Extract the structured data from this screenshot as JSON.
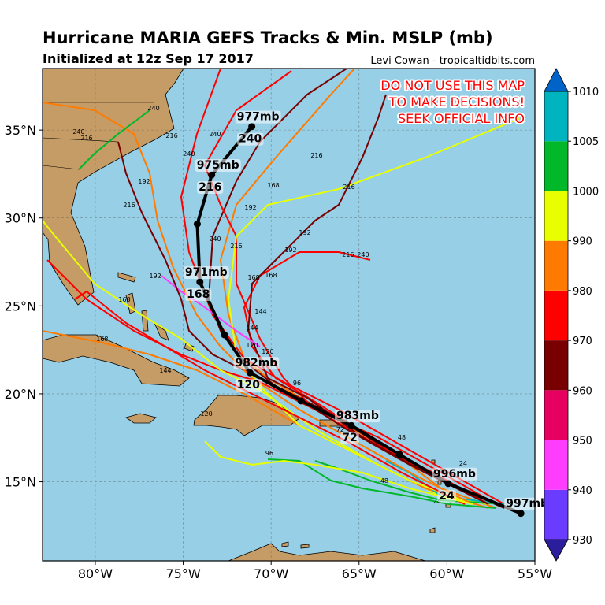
{
  "title": "Hurricane MARIA GEFS Tracks & Min. MSLP (mb)",
  "subtitle": "Initialized at 12z Sep 17 2017",
  "credit": "Levi Cowan - tropicaltidbits.com",
  "warning": [
    "DO NOT USE THIS MAP",
    "TO MAKE DECISIONS!",
    "SEEK OFFICIAL INFO"
  ],
  "lonlim": [
    -83,
    -55
  ],
  "latlim": [
    10.5,
    38.5
  ],
  "lon_ticks": [
    {
      "value": -80,
      "label": "80°W"
    },
    {
      "value": -75,
      "label": "75°W"
    },
    {
      "value": -70,
      "label": "70°W"
    },
    {
      "value": -65,
      "label": "65°W"
    },
    {
      "value": -60,
      "label": "60°W"
    },
    {
      "value": -55,
      "label": "55°W"
    }
  ],
  "lat_ticks": [
    {
      "value": 15,
      "label": "15°N"
    },
    {
      "value": 20,
      "label": "20°N"
    },
    {
      "value": 25,
      "label": "25°N"
    },
    {
      "value": 30,
      "label": "30°N"
    },
    {
      "value": 35,
      "label": "35°N"
    }
  ],
  "colorbar": {
    "ticks": [
      930,
      940,
      950,
      960,
      970,
      980,
      990,
      1000,
      1005,
      1010
    ],
    "colors": [
      "#2a1e9c",
      "#6a3cff",
      "#ff3dff",
      "#e60060",
      "#780000",
      "#ff0000",
      "#ff7a00",
      "#e8ff00",
      "#00b82a",
      "#00b4bf",
      "#0063c8"
    ]
  },
  "mean_track": [
    {
      "lon": -55.8,
      "lat": 13.2,
      "mslp": "997mb"
    },
    {
      "lon": -59.93,
      "lat": 14.9,
      "mslp": "996mb",
      "hour": "24"
    },
    {
      "lon": -62.7,
      "lat": 16.55
    },
    {
      "lon": -65.44,
      "lat": 18.2,
      "mslp": "983mb",
      "hour": "72"
    },
    {
      "lon": -68.3,
      "lat": 19.6
    },
    {
      "lon": -71.2,
      "lat": 21.2,
      "mslp": "982mb",
      "hour": "120"
    },
    {
      "lon": -72.66,
      "lat": 23.36
    },
    {
      "lon": -74.05,
      "lat": 26.36,
      "mslp": "971mb",
      "hour": "168"
    },
    {
      "lon": -74.2,
      "lat": 29.66
    },
    {
      "lon": -73.38,
      "lat": 32.45,
      "mslp": "975mb",
      "hour": "216"
    },
    {
      "lon": -71.1,
      "lat": 35.2,
      "mslp": "977mb",
      "hour": "240"
    }
  ],
  "hour_labels": [
    {
      "lon": -76.68,
      "lat": 36.26,
      "text": "240"
    },
    {
      "lon": -75.65,
      "lat": 34.69,
      "text": "216"
    },
    {
      "lon": -73.19,
      "lat": 34.78,
      "text": "240"
    },
    {
      "lon": -67.41,
      "lat": 33.57,
      "text": "216"
    },
    {
      "lon": -69.87,
      "lat": 31.87,
      "text": "168"
    },
    {
      "lon": -65.57,
      "lat": 31.78,
      "text": "216"
    },
    {
      "lon": -71.17,
      "lat": 30.62,
      "text": "192"
    },
    {
      "lon": -68.08,
      "lat": 29.18,
      "text": "192"
    },
    {
      "lon": -73.19,
      "lat": 28.82,
      "text": "240"
    },
    {
      "lon": -71.98,
      "lat": 28.42,
      "text": "216"
    },
    {
      "lon": -68.89,
      "lat": 28.2,
      "text": "192"
    },
    {
      "lon": -65.62,
      "lat": 27.93,
      "text": "216"
    },
    {
      "lon": -64.77,
      "lat": 27.93,
      "text": "240"
    },
    {
      "lon": -70.99,
      "lat": 26.63,
      "text": "168"
    },
    {
      "lon": -70.01,
      "lat": 26.76,
      "text": "168"
    },
    {
      "lon": -70.59,
      "lat": 24.7,
      "text": "144"
    },
    {
      "lon": -71.08,
      "lat": 23.76,
      "text": "144"
    },
    {
      "lon": -71.08,
      "lat": 22.78,
      "text": "120"
    },
    {
      "lon": -70.19,
      "lat": 22.42,
      "text": "120"
    },
    {
      "lon": -68.53,
      "lat": 20.62,
      "text": "96"
    },
    {
      "lon": -67.28,
      "lat": 19.19,
      "text": "96"
    },
    {
      "lon": -66.07,
      "lat": 17.98,
      "text": "72"
    },
    {
      "lon": -62.57,
      "lat": 17.53,
      "text": "48"
    },
    {
      "lon": -63.56,
      "lat": 15.07,
      "text": "48"
    },
    {
      "lon": -59.08,
      "lat": 16.06,
      "text": "24"
    },
    {
      "lon": -60.56,
      "lat": 13.91,
      "text": "24"
    },
    {
      "lon": -79.6,
      "lat": 23.13,
      "text": "168"
    },
    {
      "lon": -76.01,
      "lat": 21.34,
      "text": "144"
    },
    {
      "lon": -73.68,
      "lat": 18.88,
      "text": "120"
    },
    {
      "lon": -70.1,
      "lat": 16.64,
      "text": "96"
    },
    {
      "lon": -77.22,
      "lat": 32.09,
      "text": "192"
    },
    {
      "lon": -76.59,
      "lat": 26.72,
      "text": "192"
    },
    {
      "lon": -78.34,
      "lat": 25.37,
      "text": "168"
    },
    {
      "lon": -74.67,
      "lat": 33.66,
      "text": "240"
    },
    {
      "lon": -78.07,
      "lat": 30.75,
      "text": "216"
    },
    {
      "lon": -80.94,
      "lat": 34.92,
      "text": "240"
    },
    {
      "lon": -80.49,
      "lat": 34.56,
      "text": "216"
    }
  ]
}
